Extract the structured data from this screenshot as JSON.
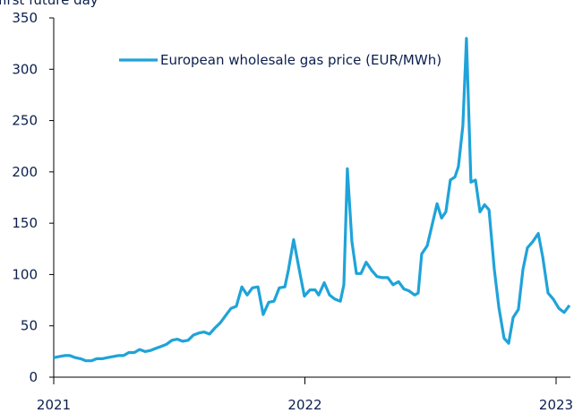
{
  "chart_data": {
    "type": "line",
    "subtitle": "first future day",
    "x": [
      2021.0,
      2021.021,
      2021.043,
      2021.064,
      2021.086,
      2021.107,
      2021.128,
      2021.15,
      2021.171,
      2021.193,
      2021.214,
      2021.235,
      2021.257,
      2021.278,
      2021.299,
      2021.321,
      2021.342,
      2021.364,
      2021.385,
      2021.406,
      2021.428,
      2021.449,
      2021.471,
      2021.492,
      2021.513,
      2021.535,
      2021.556,
      2021.578,
      2021.599,
      2021.62,
      2021.642,
      2021.663,
      2021.684,
      2021.706,
      2021.727,
      2021.749,
      2021.77,
      2021.791,
      2021.813,
      2021.834,
      2021.856,
      2021.877,
      2021.898,
      2021.92,
      2021.934,
      2021.955,
      2021.977,
      2021.998,
      2022.02,
      2022.041,
      2022.055,
      2022.077,
      2022.098,
      2022.119,
      2022.141,
      2022.155,
      2022.169,
      2022.187,
      2022.205,
      2022.223,
      2022.244,
      2022.266,
      2022.287,
      2022.308,
      2022.33,
      2022.351,
      2022.373,
      2022.394,
      2022.415,
      2022.437,
      2022.451,
      2022.465,
      2022.487,
      2022.508,
      2022.526,
      2022.544,
      2022.561,
      2022.579,
      2022.597,
      2022.611,
      2022.629,
      2022.643,
      2022.661,
      2022.679,
      2022.697,
      2022.715,
      2022.733,
      2022.754,
      2022.772,
      2022.793,
      2022.811,
      2022.829,
      2022.85,
      2022.868,
      2022.886,
      2022.907,
      2022.929,
      2022.947,
      2022.968,
      2022.989,
      2023.011,
      2023.032,
      2023.053
    ],
    "series": [
      {
        "name": "European wholesale gas price (EUR/MWh)",
        "color": "#1fa3d9",
        "values": [
          19,
          20,
          21,
          21,
          19,
          18,
          16,
          16,
          18,
          18,
          19,
          20,
          21,
          21,
          24,
          24,
          27,
          25,
          26,
          28,
          30,
          32,
          36,
          37,
          35,
          36,
          41,
          43,
          44,
          42,
          48,
          53,
          60,
          67,
          69,
          88,
          80,
          87,
          88,
          61,
          73,
          74,
          87,
          88,
          104,
          134,
          105,
          79,
          85,
          85,
          80,
          92,
          80,
          76,
          74,
          90,
          203,
          132,
          101,
          101,
          112,
          104,
          98,
          97,
          97,
          90,
          93,
          86,
          84,
          80,
          82,
          120,
          128,
          150,
          169,
          155,
          161,
          192,
          195,
          205,
          245,
          330,
          190,
          192,
          161,
          168,
          163,
          105,
          68,
          38,
          33,
          58,
          66,
          105,
          126,
          132,
          140,
          117,
          82,
          76,
          67,
          63,
          70
        ]
      }
    ],
    "xlim": [
      2021,
      2023.057
    ],
    "xticks": [
      2021,
      2022,
      2023
    ],
    "ylim": [
      0,
      350
    ],
    "yticks": [
      0,
      50,
      100,
      150,
      200,
      250,
      300,
      350
    ]
  }
}
